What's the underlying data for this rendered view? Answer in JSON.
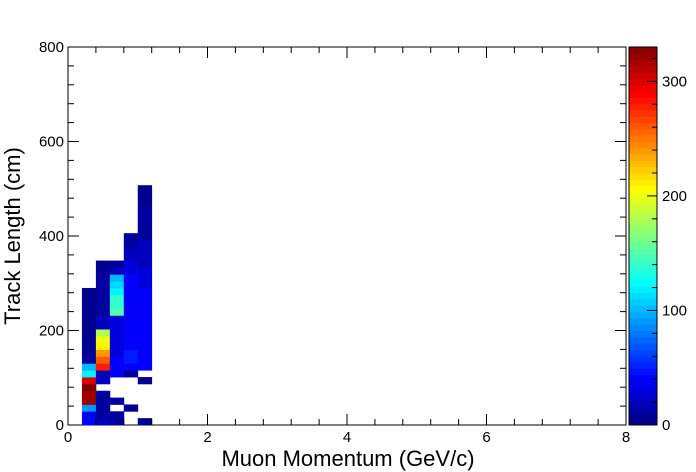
{
  "chart_data": {
    "type": "heatmap",
    "xlabel": "Muon Momentum (GeV/c)",
    "ylabel": "Track Length (cm)",
    "xlim": [
      0,
      8
    ],
    "ylim": [
      0,
      800
    ],
    "x_ticks": [
      "0",
      "2",
      "4",
      "6",
      "8"
    ],
    "y_ticks": [
      "0",
      "200",
      "400",
      "600",
      "800"
    ],
    "z_range": [
      0,
      330
    ],
    "z_ticks": [
      "0",
      "100",
      "200",
      "300"
    ],
    "colormap": "jet",
    "bin_width_x": 0.2,
    "bin_width_y": 14.5,
    "cells": [
      [
        0.2,
        0,
        40
      ],
      [
        0.2,
        14.5,
        40
      ],
      [
        0.2,
        29,
        90
      ],
      [
        0.2,
        43.5,
        320
      ],
      [
        0.2,
        58,
        320
      ],
      [
        0.2,
        72.5,
        330
      ],
      [
        0.2,
        87,
        300
      ],
      [
        0.2,
        101.5,
        120
      ],
      [
        0.2,
        116,
        100
      ],
      [
        0.2,
        130.5,
        10
      ],
      [
        0.2,
        145,
        5
      ],
      [
        0.2,
        159.5,
        5
      ],
      [
        0.2,
        174,
        5
      ],
      [
        0.2,
        188.5,
        5
      ],
      [
        0.2,
        203,
        5
      ],
      [
        0.2,
        217.5,
        5
      ],
      [
        0.2,
        232,
        5
      ],
      [
        0.2,
        246.5,
        5
      ],
      [
        0.2,
        261,
        5
      ],
      [
        0.2,
        275.5,
        5
      ],
      [
        0.4,
        0,
        20
      ],
      [
        0.4,
        14.5,
        10
      ],
      [
        0.4,
        29,
        10
      ],
      [
        0.4,
        43.5,
        10
      ],
      [
        0.4,
        58,
        10
      ],
      [
        0.4,
        87,
        20
      ],
      [
        0.4,
        101.5,
        20
      ],
      [
        0.4,
        116,
        280
      ],
      [
        0.4,
        130.5,
        260
      ],
      [
        0.4,
        145,
        240
      ],
      [
        0.4,
        159.5,
        210
      ],
      [
        0.4,
        174,
        200
      ],
      [
        0.4,
        188.5,
        180
      ],
      [
        0.4,
        203,
        20
      ],
      [
        0.4,
        217.5,
        20
      ],
      [
        0.4,
        232,
        10
      ],
      [
        0.4,
        246.5,
        10
      ],
      [
        0.4,
        261,
        10
      ],
      [
        0.4,
        275.5,
        10
      ],
      [
        0.4,
        290,
        10
      ],
      [
        0.4,
        304.5,
        10
      ],
      [
        0.4,
        319,
        5
      ],
      [
        0.4,
        333.5,
        5
      ],
      [
        0.6,
        0,
        10
      ],
      [
        0.6,
        14.5,
        10
      ],
      [
        0.6,
        43.5,
        10
      ],
      [
        0.6,
        101.5,
        40
      ],
      [
        0.6,
        116,
        40
      ],
      [
        0.6,
        130.5,
        40
      ],
      [
        0.6,
        145,
        30
      ],
      [
        0.6,
        159.5,
        30
      ],
      [
        0.6,
        174,
        30
      ],
      [
        0.6,
        188.5,
        30
      ],
      [
        0.6,
        203,
        30
      ],
      [
        0.6,
        217.5,
        30
      ],
      [
        0.6,
        232,
        150
      ],
      [
        0.6,
        246.5,
        140
      ],
      [
        0.6,
        261,
        140
      ],
      [
        0.6,
        275.5,
        120
      ],
      [
        0.6,
        290,
        110
      ],
      [
        0.6,
        304.5,
        100
      ],
      [
        0.6,
        319,
        20
      ],
      [
        0.6,
        333.5,
        10
      ],
      [
        0.8,
        29,
        5
      ],
      [
        0.8,
        101.5,
        10
      ],
      [
        0.8,
        116,
        40
      ],
      [
        0.8,
        130.5,
        50
      ],
      [
        0.8,
        145,
        50
      ],
      [
        0.8,
        159.5,
        40
      ],
      [
        0.8,
        174,
        40
      ],
      [
        0.8,
        188.5,
        40
      ],
      [
        0.8,
        203,
        40
      ],
      [
        0.8,
        217.5,
        40
      ],
      [
        0.8,
        232,
        40
      ],
      [
        0.8,
        246.5,
        40
      ],
      [
        0.8,
        261,
        40
      ],
      [
        0.8,
        275.5,
        40
      ],
      [
        0.8,
        290,
        40
      ],
      [
        0.8,
        304.5,
        40
      ],
      [
        0.8,
        319,
        30
      ],
      [
        0.8,
        333.5,
        30
      ],
      [
        0.8,
        348,
        20
      ],
      [
        0.8,
        362.5,
        20
      ],
      [
        0.8,
        377,
        10
      ],
      [
        0.8,
        391.5,
        10
      ],
      [
        1.0,
        0,
        5
      ],
      [
        1.0,
        87,
        5
      ],
      [
        1.0,
        116,
        40
      ],
      [
        1.0,
        130.5,
        40
      ],
      [
        1.0,
        145,
        40
      ],
      [
        1.0,
        159.5,
        40
      ],
      [
        1.0,
        174,
        40
      ],
      [
        1.0,
        188.5,
        40
      ],
      [
        1.0,
        203,
        40
      ],
      [
        1.0,
        217.5,
        40
      ],
      [
        1.0,
        232,
        40
      ],
      [
        1.0,
        246.5,
        40
      ],
      [
        1.0,
        261,
        40
      ],
      [
        1.0,
        275.5,
        40
      ],
      [
        1.0,
        290,
        30
      ],
      [
        1.0,
        304.5,
        30
      ],
      [
        1.0,
        319,
        30
      ],
      [
        1.0,
        333.5,
        20
      ],
      [
        1.0,
        348,
        20
      ],
      [
        1.0,
        362.5,
        20
      ],
      [
        1.0,
        377,
        20
      ],
      [
        1.0,
        391.5,
        10
      ],
      [
        1.0,
        406,
        10
      ],
      [
        1.0,
        420.5,
        10
      ],
      [
        1.0,
        435,
        10
      ],
      [
        1.0,
        449.5,
        10
      ],
      [
        1.0,
        464,
        5
      ],
      [
        1.0,
        478.5,
        5
      ],
      [
        1.0,
        493,
        5
      ]
    ]
  }
}
